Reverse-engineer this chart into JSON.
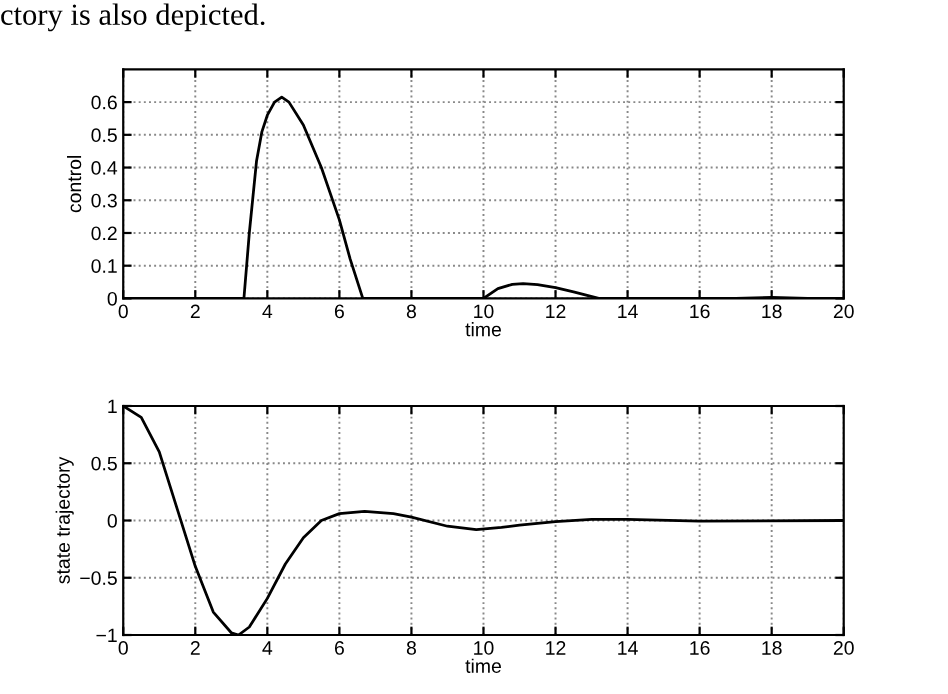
{
  "chart_data": [
    {
      "type": "line",
      "xlabel": "time",
      "ylabel": "control",
      "annotations": [
        "ctory is also depicted."
      ],
      "x": [
        0,
        3.35,
        3.5,
        3.7,
        3.85,
        4.0,
        4.2,
        4.4,
        4.6,
        5.0,
        5.5,
        6.0,
        6.3,
        6.65,
        10.0,
        10.4,
        10.8,
        11.1,
        11.5,
        12.0,
        12.5,
        13.2,
        17.0,
        18.0,
        19.0,
        20
      ],
      "series": [
        {
          "color": "#000000",
          "values": [
            0,
            0,
            0.2,
            0.42,
            0.51,
            0.56,
            0.6,
            0.615,
            0.6,
            0.53,
            0.4,
            0.24,
            0.12,
            0,
            0,
            0.03,
            0.043,
            0.045,
            0.042,
            0.033,
            0.02,
            0,
            0,
            0.003,
            0,
            0
          ]
        }
      ],
      "xlim": [
        0,
        20
      ],
      "xticks": [
        0,
        2,
        4,
        6,
        8,
        10,
        12,
        14,
        16,
        18,
        20
      ],
      "ylim": [
        0,
        0.7
      ],
      "yticks": [
        0,
        0.1,
        0.2,
        0.3,
        0.4,
        0.5,
        0.6
      ],
      "grid": true,
      "line_style": "solid"
    },
    {
      "type": "line",
      "xlabel": "time",
      "ylabel": "state trajectory",
      "x": [
        0,
        0.5,
        1,
        1.5,
        2,
        2.5,
        3,
        3.2,
        3.5,
        4,
        4.5,
        5,
        5.5,
        6,
        6.7,
        7.5,
        8,
        9,
        9.8,
        10.5,
        11,
        12,
        13,
        14,
        16,
        20
      ],
      "series": [
        {
          "color": "#000000",
          "values": [
            1,
            0.9,
            0.6,
            0.1,
            -0.4,
            -0.8,
            -0.98,
            -1.0,
            -0.93,
            -0.68,
            -0.38,
            -0.15,
            0,
            0.06,
            0.08,
            0.06,
            0.03,
            -0.05,
            -0.08,
            -0.06,
            -0.04,
            -0.01,
            0.01,
            0.01,
            -0.005,
            0
          ]
        }
      ],
      "xlim": [
        0,
        20
      ],
      "xticks": [
        0,
        2,
        4,
        6,
        8,
        10,
        12,
        14,
        16,
        18,
        20
      ],
      "ylim": [
        -1,
        1
      ],
      "yticks": [
        {
          "value": -1,
          "label": "−1"
        },
        {
          "value": -0.5,
          "label": "−0.5"
        },
        0,
        0.5,
        1
      ],
      "grid": true,
      "line_style": "solid"
    }
  ]
}
